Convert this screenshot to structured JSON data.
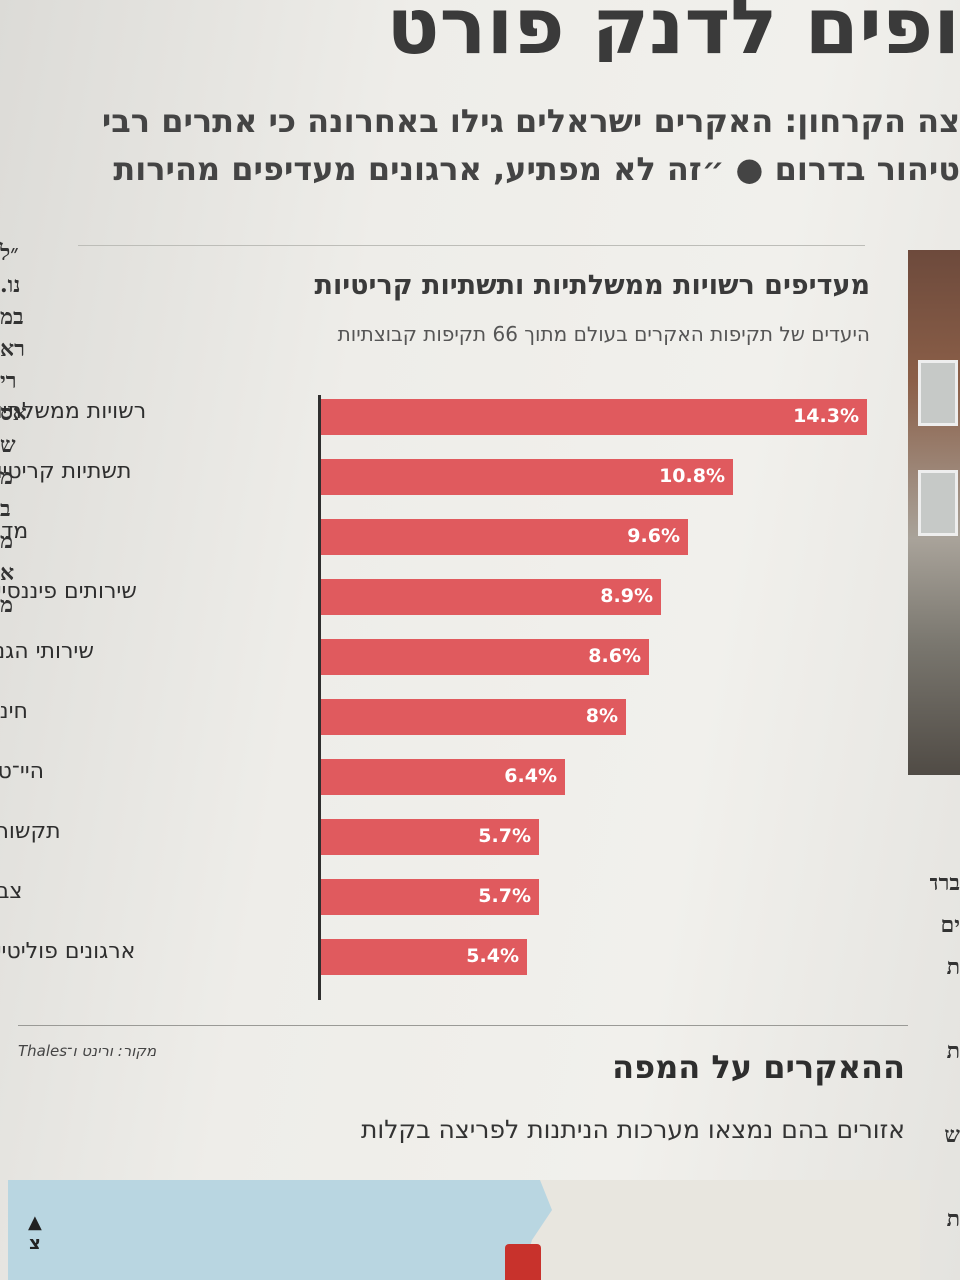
{
  "page": {
    "headline_fragment": "ופים לדנק פורט",
    "deck_line1": "צה הקרחון: האקרים ישראלים גילו באחרונה כי אתרים רבי",
    "deck_line2": "טיהור בדרום ● ״זה לא מפתיע, ארגונים מעדיפים מהירות",
    "left_column_fragments": [
      "״ל",
      "נו.",
      "במ",
      "רא",
      "רי",
      "אס",
      "ש",
      "מ",
      "ב",
      "מ",
      "א",
      "מ"
    ],
    "right_column_fragments": [
      "ברה",
      "ים",
      "ת",
      "",
      "ת",
      "",
      "ש",
      "",
      "ת",
      ""
    ]
  },
  "chart_data": {
    "type": "bar",
    "orientation": "horizontal",
    "title": "מעדיפים רשויות ממשלתיות ותשתיות קריטיות",
    "subtitle": "היעדים של תקיפות האקרים בעולם מתוך 66 תקיפות קבוצתיות",
    "categories": [
      "רשויות ממשלתיות",
      "תשתיות קריטיות",
      "מדיה",
      "שירותים פיננסיים",
      "שירותי הגנה",
      "חינוך",
      "היי־טק",
      "תקשורת",
      "צבא",
      "ארגונים פוליטיים"
    ],
    "values": [
      14.3,
      10.8,
      9.6,
      8.9,
      8.6,
      8,
      6.4,
      5.7,
      5.7,
      5.4
    ],
    "value_labels": [
      "14.3%",
      "10.8%",
      "9.6%",
      "8.9%",
      "8.6%",
      "8%",
      "6.4%",
      "5.7%",
      "5.7%",
      "5.4%"
    ],
    "xlim": [
      0,
      14.3
    ],
    "bar_color": "#e05a5e",
    "source": "מקור: ורינט ו־Thales"
  },
  "map_section": {
    "title": "ההאקרים על המפה",
    "subtitle": "אזורים בהם נמצאו מערכות הניתנות לפריצה בקלות",
    "compass_label": "צ"
  }
}
